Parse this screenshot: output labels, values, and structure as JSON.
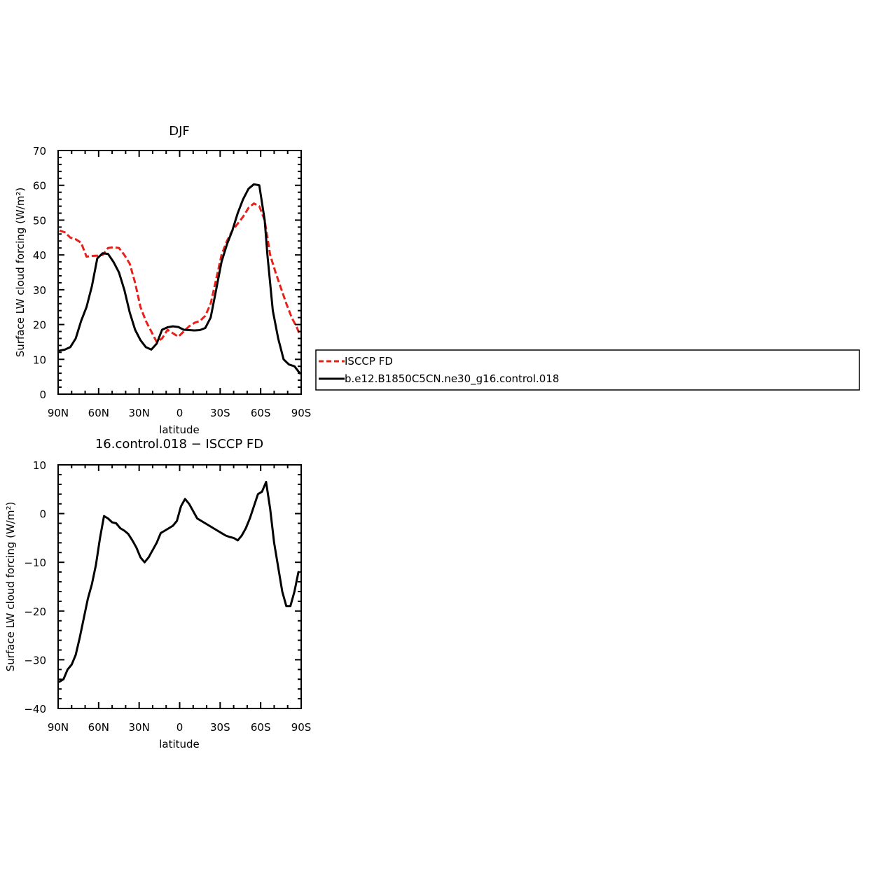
{
  "colors": {
    "observed": "#e8201a",
    "model": "#000000",
    "background": "#ffffff"
  },
  "chart_data": [
    {
      "type": "line",
      "title": "DJF",
      "xlabel": "latitude",
      "ylabel": "Surface LW cloud forcing (W/m²)",
      "xlim": [
        90,
        -90
      ],
      "ylim": [
        0,
        70
      ],
      "xticks": [
        90,
        60,
        30,
        0,
        -30,
        -60,
        -90
      ],
      "xtick_labels": [
        "90N",
        "60N",
        "30N",
        "0",
        "30S",
        "60S",
        "90S"
      ],
      "yticks": [
        0,
        10,
        20,
        30,
        40,
        50,
        60,
        70
      ],
      "ytick_labels": [
        "0",
        "10",
        "20",
        "30",
        "40",
        "50",
        "60",
        "70"
      ],
      "grid": false,
      "legend": {
        "placement": "right",
        "entries": [
          "ISCCP FD",
          "b.e12.B1850C5CN.ne30_g16.control.018"
        ]
      },
      "series": [
        {
          "name": "ISCCP FD",
          "style": "dashed",
          "color": "#e8201a",
          "x": [
            89,
            85,
            81,
            77,
            73,
            69,
            65,
            61,
            57,
            53,
            49,
            45,
            41,
            37,
            33,
            29,
            25,
            21,
            17,
            13,
            9,
            5,
            1,
            -3,
            -7,
            -11,
            -15,
            -19,
            -23,
            -27,
            -31,
            -35,
            -39,
            -43,
            -47,
            -51,
            -55,
            -59,
            -63,
            -67,
            -71,
            -75,
            -79,
            -83,
            -87,
            -89
          ],
          "y": [
            47,
            46.5,
            45,
            44.5,
            43.5,
            39.5,
            39.7,
            39.8,
            40,
            42,
            42.2,
            42,
            40,
            37.5,
            32,
            25,
            21,
            18,
            15,
            16,
            18.5,
            17.5,
            16.5,
            18,
            19.5,
            20.5,
            21,
            22.5,
            26,
            33,
            40,
            44,
            47,
            49,
            51,
            53.5,
            54.8,
            54,
            50,
            40,
            35,
            30.5,
            26,
            22,
            19,
            17
          ]
        },
        {
          "name": "b.e12.B1850C5CN.ne30_g16.control.018",
          "style": "solid",
          "color": "#000000",
          "x": [
            89,
            85,
            81,
            77,
            73,
            69,
            65,
            61,
            57,
            53,
            49,
            45,
            41,
            37,
            33,
            29,
            25,
            21,
            17,
            13,
            9,
            5,
            1,
            -3,
            -7,
            -11,
            -15,
            -19,
            -23,
            -27,
            -31,
            -35,
            -39,
            -43,
            -47,
            -51,
            -55,
            -59,
            -63,
            -65,
            -69,
            -73,
            -77,
            -81,
            -85,
            -89
          ],
          "y": [
            12.5,
            12.8,
            13.5,
            16,
            21,
            25,
            31,
            39,
            40.5,
            40.3,
            38,
            35,
            30,
            23.5,
            18.5,
            15.5,
            13.5,
            12.8,
            14.5,
            18.5,
            19.2,
            19.5,
            19.3,
            18.5,
            18.4,
            18.3,
            18.4,
            19,
            22,
            30,
            38,
            43,
            47,
            52,
            56,
            59,
            60.3,
            60,
            50,
            40,
            24,
            16,
            10,
            8.5,
            8,
            6
          ]
        }
      ]
    },
    {
      "type": "line",
      "title": "16.control.018 − ISCCP FD",
      "xlabel": "latitude",
      "ylabel": "Surface LW cloud forcing (W/m²)",
      "xlim": [
        90,
        -90
      ],
      "ylim": [
        -40,
        10
      ],
      "xticks": [
        90,
        60,
        30,
        0,
        -30,
        -60,
        -90
      ],
      "xtick_labels": [
        "90N",
        "60N",
        "30N",
        "0",
        "30S",
        "60S",
        "90S"
      ],
      "yticks": [
        -40,
        -30,
        -20,
        -10,
        0,
        10
      ],
      "ytick_labels": [
        "−40",
        "−30",
        "−20",
        "−10",
        "0",
        "10"
      ],
      "grid": false,
      "series": [
        {
          "name": "",
          "style": "solid",
          "color": "#000000",
          "x": [
            89,
            86,
            83,
            80,
            77,
            74,
            71,
            68,
            65,
            62,
            59,
            56,
            53,
            50,
            47,
            44,
            41,
            38,
            35,
            32,
            29,
            26,
            23,
            20,
            17,
            14,
            11,
            8,
            5,
            2,
            -1,
            -4,
            -7,
            -10,
            -13,
            -16,
            -19,
            -22,
            -25,
            -28,
            -31,
            -34,
            -37,
            -40,
            -43,
            -46,
            -49,
            -52,
            -55,
            -58,
            -61,
            -64,
            -67,
            -70,
            -73,
            -76,
            -79,
            -82,
            -85,
            -88
          ],
          "y": [
            -34.5,
            -34,
            -32,
            -31,
            -29,
            -25.5,
            -21.5,
            -17.5,
            -14.5,
            -10.5,
            -5,
            -0.5,
            -1,
            -1.8,
            -2,
            -3,
            -3.5,
            -4.2,
            -5.5,
            -7,
            -9,
            -10,
            -9,
            -7.5,
            -6,
            -4,
            -3.5,
            -3,
            -2.5,
            -1.5,
            1.5,
            3,
            2,
            0.5,
            -1,
            -1.5,
            -2,
            -2.5,
            -3,
            -3.5,
            -4,
            -4.5,
            -4.8,
            -5,
            -5.5,
            -4.5,
            -3,
            -1,
            1.5,
            4,
            4.5,
            6.5,
            1,
            -6,
            -11,
            -16,
            -19,
            -19,
            -16,
            -12
          ]
        }
      ]
    }
  ]
}
